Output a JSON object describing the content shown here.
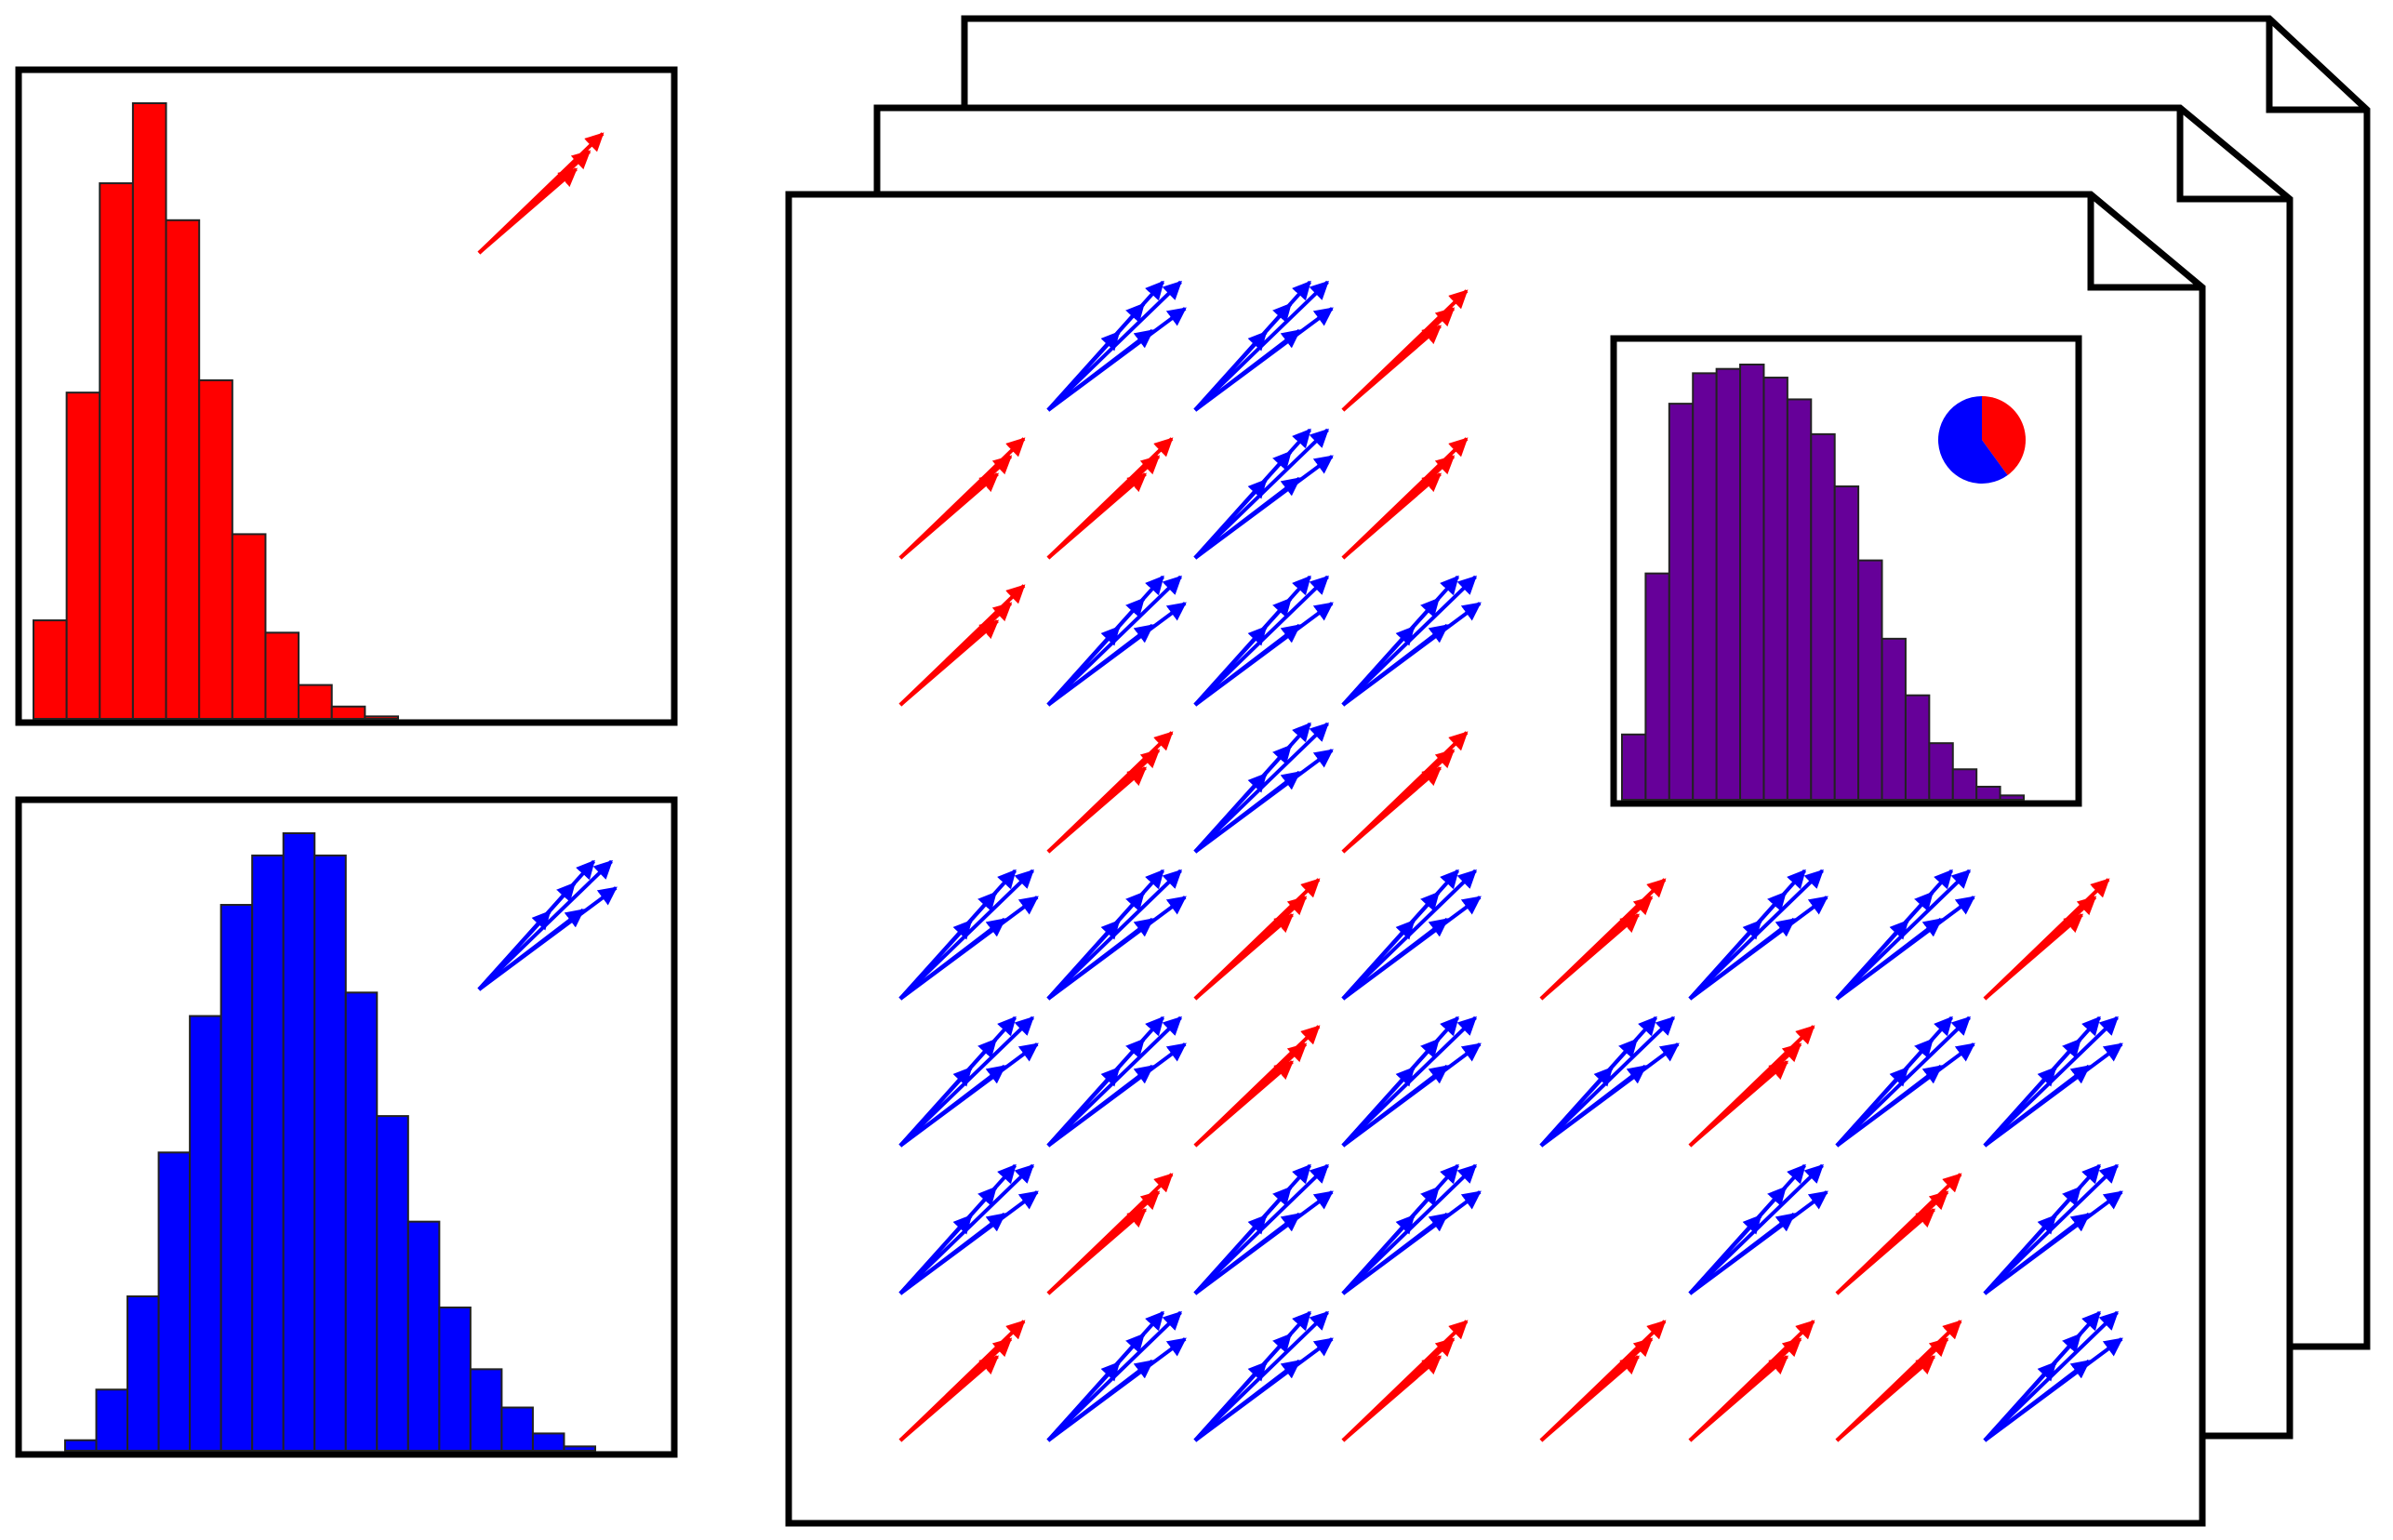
{
  "colors": {
    "red": "#ff0000",
    "blue": "#0000ff",
    "purple": "#660099",
    "outline": "#000000",
    "background": "#ffffff"
  },
  "panels": {
    "red_histogram": {
      "kind": "histogram",
      "color": "red",
      "bars": [
        0.16,
        0.53,
        0.87,
        1.0,
        0.81,
        0.55,
        0.3,
        0.14,
        0.055,
        0.02,
        0.004
      ],
      "glyph": {
        "color": "red",
        "arrow_count": 3
      }
    },
    "blue_histogram": {
      "kind": "histogram",
      "color": "blue",
      "bars": [
        0.017,
        0.099,
        0.25,
        0.483,
        0.704,
        0.884,
        0.964,
        1.0,
        0.964,
        0.742,
        0.542,
        0.371,
        0.232,
        0.132,
        0.07,
        0.028,
        0.007
      ],
      "glyph": {
        "color": "blue",
        "arrow_count": 6
      }
    }
  },
  "document_stack": {
    "page_count": 3,
    "glyphs": [
      "_",
      "blue",
      "blue",
      "red",
      "red",
      "red",
      "blue",
      "red",
      "red",
      "blue",
      "blue",
      "blue",
      "_",
      "red",
      "blue",
      "red",
      "blue",
      "blue",
      "red",
      "blue",
      "red",
      "blue",
      "blue",
      "red",
      "blue",
      "blue",
      "red",
      "blue",
      "blue",
      "red",
      "blue",
      "blue",
      "blue",
      "red",
      "blue",
      "blue",
      "_",
      "blue",
      "red",
      "blue",
      "red",
      "blue",
      "blue",
      "red",
      "red",
      "red",
      "red",
      "blue"
    ],
    "inset": {
      "color": "purple",
      "bars": [
        0.15,
        0.52,
        0.91,
        0.98,
        0.99,
        1.0,
        0.97,
        0.92,
        0.84,
        0.72,
        0.55,
        0.37,
        0.24,
        0.13,
        0.07,
        0.03,
        0.01
      ],
      "pie": {
        "blue_fraction": 0.6,
        "red_fraction": 0.4
      }
    }
  }
}
